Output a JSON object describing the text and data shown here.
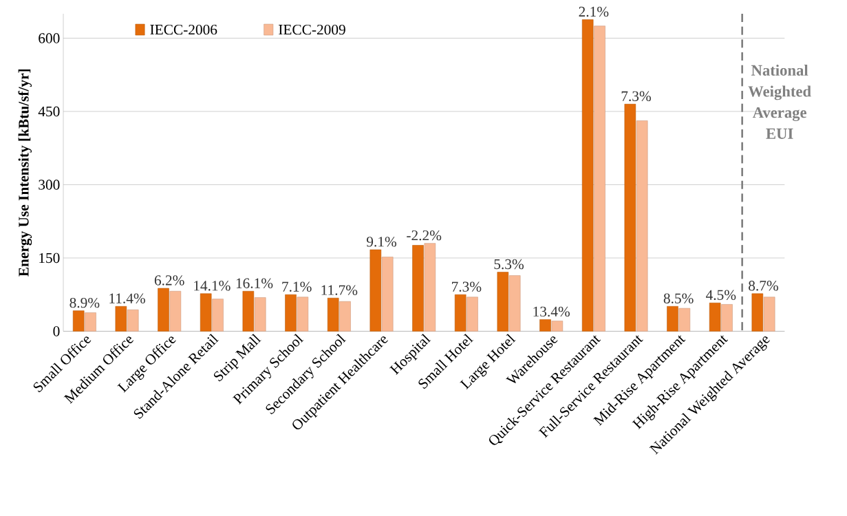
{
  "chart_data": {
    "type": "bar",
    "ylabel": "Energy Use Intensity [kBtu/sf/yr]",
    "categories": [
      "Small Office",
      "Medium Office",
      "Large Office",
      "Stand-Alone Retail",
      "Strip Mall",
      "Primary School",
      "Secondary School",
      "Outpatient Healthcare",
      "Hospital",
      "Small Hotel",
      "Large Hotel",
      "Warehouse",
      "Quick-Service Restaurant",
      "Full-Service Restaurant",
      "Mid-Rise Apartment",
      "High-Rise Apartment",
      "National Weighted Average"
    ],
    "series": [
      {
        "name": "IECC-2006",
        "color": "#e46c0a",
        "values": [
          42,
          51,
          88,
          77,
          82,
          75,
          68,
          167,
          176,
          75,
          121,
          24,
          638,
          465,
          51,
          58,
          77
        ]
      },
      {
        "name": "IECC-2009",
        "color": "#f9b995",
        "values": [
          38,
          44,
          82,
          66,
          69,
          70,
          61,
          152,
          180,
          70,
          114,
          21,
          625,
          431,
          47,
          55,
          70
        ]
      }
    ],
    "ylim": [
      0,
      650
    ],
    "yticks": [
      0,
      150,
      300,
      450,
      600
    ],
    "grid": "y",
    "legend": "top left",
    "annotations": [
      "National Weighted Average EUI",
      {
        "text": "8.9%",
        "x": "Small Office",
        "y": 42
      },
      {
        "text": "11.4%",
        "x": "Medium Office",
        "y": 51
      },
      {
        "text": "6.2%",
        "x": "Large Office",
        "y": 88
      },
      {
        "text": "14.1%",
        "x": "Stand-Alone Retail",
        "y": 77
      },
      {
        "text": "16.1%",
        "x": "Strip Mall",
        "y": 82
      },
      {
        "text": "7.1%",
        "x": "Primary School",
        "y": 75
      },
      {
        "text": "11.7%",
        "x": "Secondary School",
        "y": 68
      },
      {
        "text": "9.1%",
        "x": "Outpatient Healthcare",
        "y": 167
      },
      {
        "text": "-2.2%",
        "x": "Hospital",
        "y": 180
      },
      {
        "text": "7.3%",
        "x": "Small Hotel",
        "y": 75
      },
      {
        "text": "5.3%",
        "x": "Large Hotel",
        "y": 121
      },
      {
        "text": "13.4%",
        "x": "Warehouse",
        "y": 24
      },
      {
        "text": "2.1%",
        "x": "Quick-Service Restaurant",
        "y": 638
      },
      {
        "text": "7.3%",
        "x": "Full-Service Restaurant",
        "y": 465
      },
      {
        "text": "8.5%",
        "x": "Mid-Rise Apartment",
        "y": 51
      },
      {
        "text": "4.5%",
        "x": "High-Rise Apartment",
        "y": 58
      },
      {
        "text": "8.7%",
        "x": "National Weighted Average",
        "y": 77
      }
    ]
  }
}
